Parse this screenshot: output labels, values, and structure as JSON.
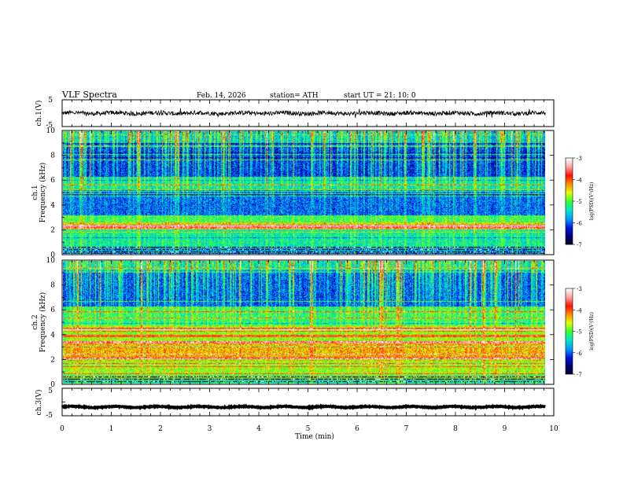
{
  "header": {
    "title": "VLF  Spectra",
    "date": "Feb. 14, 2026",
    "station": "station= ATH",
    "start_ut": "start  UT  =   21: 10: 0"
  },
  "chart_data": [
    {
      "name": "ch1-waveform",
      "type": "line",
      "ylabel": "ch.1(V)",
      "ylim": [
        -5,
        5
      ],
      "yticks": [
        5,
        -5
      ],
      "xlim": [
        0,
        10
      ],
      "data_xmax": 9.83,
      "baseline": 0,
      "noise_amplitude": 0.8
    },
    {
      "name": "ch1-spectrogram",
      "type": "heatmap",
      "ylabel_line1": "ch.1",
      "ylabel_line2": "Frequency (kHz)",
      "ylim": [
        0,
        10
      ],
      "yticks": [
        0,
        2,
        4,
        6,
        8,
        10
      ],
      "xlim": [
        0,
        10
      ],
      "data_xmax": 9.83,
      "colorbar": {
        "label": "log(PSD)(V²/Hz)",
        "ticks": [
          "-3",
          "-4",
          "-5",
          "-6",
          "-7"
        ],
        "range": [
          -7,
          -3
        ]
      }
    },
    {
      "name": "ch2-spectrogram",
      "type": "heatmap",
      "ylabel_line1": "ch.2",
      "ylabel_line2": "Frequency (kHz)",
      "ylim": [
        0,
        10
      ],
      "yticks": [
        0,
        2,
        4,
        6,
        8,
        10
      ],
      "xlim": [
        0,
        10
      ],
      "data_xmax": 9.83,
      "colorbar": {
        "label": "log(PSD)(V²/Hz)",
        "ticks": [
          "-3",
          "-4",
          "-5",
          "-6",
          "-7"
        ],
        "range": [
          -7,
          -3
        ]
      }
    },
    {
      "name": "ch3-waveform",
      "type": "line",
      "ylabel": "ch.3(V)",
      "ylim": [
        -5,
        5
      ],
      "yticks": [
        5,
        -5
      ],
      "xlim": [
        0,
        10
      ],
      "data_xmax": 9.83,
      "baseline": -1.8,
      "noise_amplitude": 0.15
    }
  ],
  "x_axis": {
    "label": "Time  (min)",
    "ticks": [
      "0",
      "1",
      "2",
      "3",
      "4",
      "5",
      "6",
      "7",
      "8",
      "9",
      "10"
    ],
    "range": [
      0,
      10
    ]
  },
  "colors": {
    "colormap": [
      "#00002a",
      "#00007a",
      "#0018e0",
      "#00a0ff",
      "#00e8c8",
      "#30ff30",
      "#e0ff00",
      "#ff9000",
      "#ff1000",
      "#ffa0a0",
      "#ffffff"
    ]
  }
}
